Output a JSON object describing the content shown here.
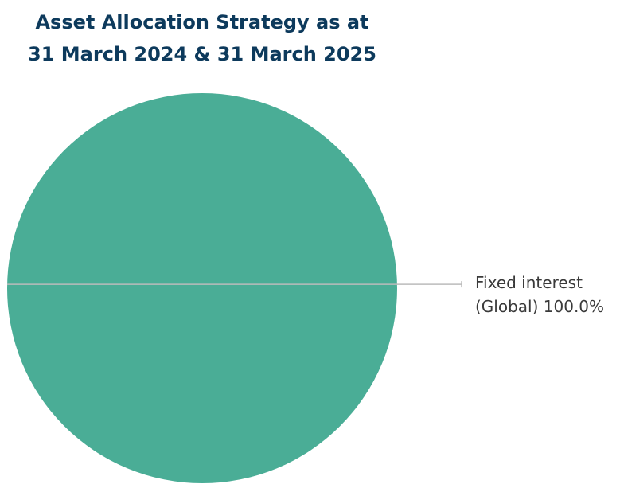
{
  "chart_data": {
    "type": "pie",
    "title": "Asset Allocation Strategy as at 31 March 2024 & 31 March 2025",
    "categories": [
      "Fixed interest (Global)"
    ],
    "values": [
      100
    ],
    "value_labels": [
      "100.0%"
    ],
    "colors": [
      "#4aad96"
    ]
  }
}
